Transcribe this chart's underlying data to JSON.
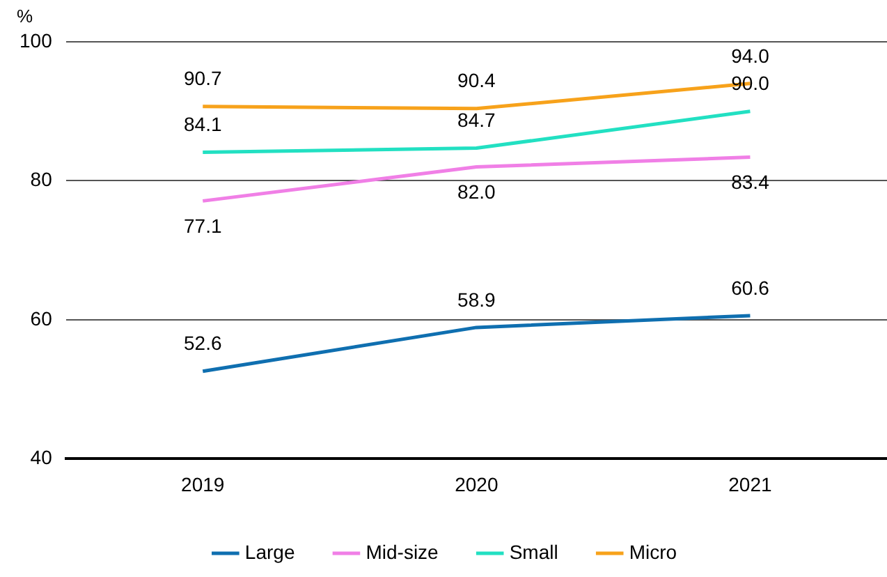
{
  "chart_data": {
    "type": "line",
    "ylabel": "%",
    "categories": [
      "2019",
      "2020",
      "2021"
    ],
    "series": [
      {
        "name": "Large",
        "color": "#0f6fb0",
        "values": [
          52.6,
          58.9,
          60.6
        ],
        "value_labels": [
          "52.6",
          "58.9",
          "60.6"
        ]
      },
      {
        "name": "Mid-size",
        "color": "#f07fe6",
        "values": [
          77.1,
          82.0,
          83.4
        ],
        "value_labels": [
          "77.1",
          "82.0",
          "83.4"
        ]
      },
      {
        "name": "Small",
        "color": "#22e0c2",
        "values": [
          84.1,
          84.7,
          90.0
        ],
        "value_labels": [
          "84.1",
          "84.7",
          "90.0"
        ]
      },
      {
        "name": "Micro",
        "color": "#f7a21b",
        "values": [
          90.7,
          90.4,
          94.0
        ],
        "value_labels": [
          "90.7",
          "90.4",
          "94.0"
        ]
      }
    ],
    "ylim": [
      40,
      100
    ],
    "yticks": [
      40,
      60,
      80,
      100
    ],
    "grid": "y",
    "legend": "bottom",
    "marker": "none",
    "line_style": "solid"
  }
}
